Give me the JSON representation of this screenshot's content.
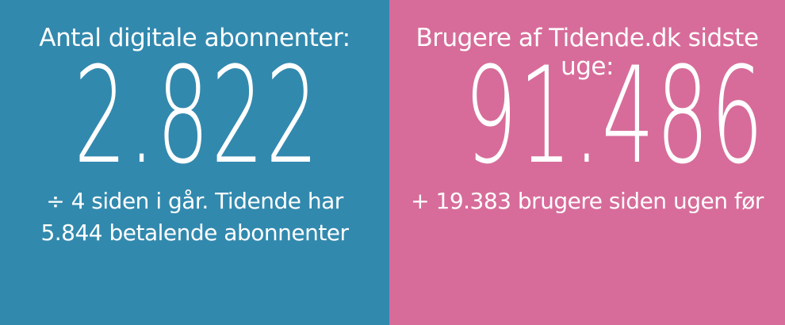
{
  "colors": {
    "left_bg": "#3289ae",
    "right_bg": "#d76c9a",
    "text": "#ffffff"
  },
  "left": {
    "label": "Antal digitale abonnenter:",
    "value": "2.822",
    "sub_line1": "÷  4 siden i går. Tidende har",
    "sub_line2": "5.844 betalende abonnenter"
  },
  "right": {
    "label": "Brugere af Tidende.dk sidste uge:",
    "value": "91.486",
    "sub_line1": "+ 19.383 brugere siden ugen før"
  }
}
